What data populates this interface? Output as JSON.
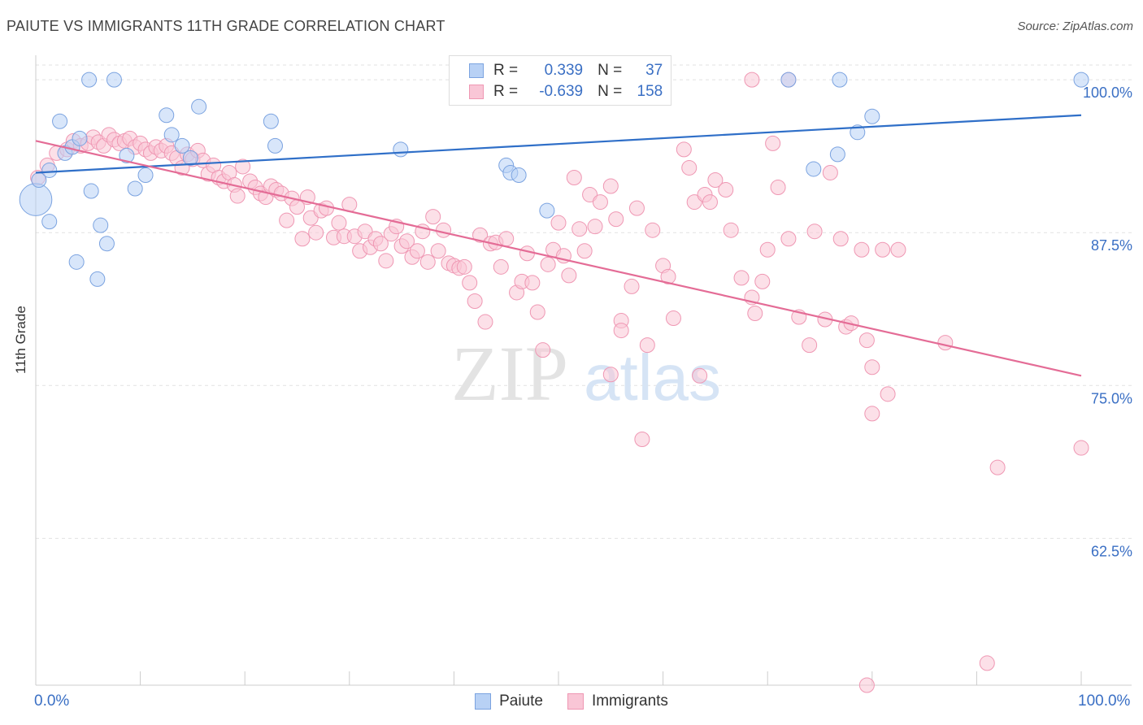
{
  "title": "PAIUTE VS IMMIGRANTS 11TH GRADE CORRELATION CHART",
  "source": "Source: ZipAtlas.com",
  "watermark": {
    "zip": "ZIP",
    "atlas": "atlas"
  },
  "colors": {
    "paiute_fill": "#b8d1f5",
    "paiute_stroke": "#7ba3e0",
    "paiute_line": "#2f6fc8",
    "immigrants_fill": "#f9c6d6",
    "immigrants_stroke": "#ef97b3",
    "immigrants_line": "#e46c96",
    "tick_label": "#3a6fc4",
    "grid": "#e2e2e2"
  },
  "legend": {
    "rows": [
      {
        "r_label": "R =",
        "r_value": "0.339",
        "n_label": "N =",
        "n_value": "37"
      },
      {
        "r_label": "R =",
        "r_value": "-0.639",
        "n_label": "N =",
        "n_value": "158"
      }
    ]
  },
  "chart_data": {
    "type": "scatter",
    "title": "PAIUTE VS IMMIGRANTS 11TH GRADE CORRELATION CHART",
    "xlabel": "",
    "ylabel": "11th Grade",
    "xlim": [
      0,
      100
    ],
    "ylim": [
      50.5,
      102
    ],
    "x_tick_labels": [
      "0.0%",
      "100.0%"
    ],
    "y_ticks": [
      62.5,
      75.0,
      87.5,
      100.0
    ],
    "y_tick_labels": [
      "62.5%",
      "75.0%",
      "87.5%",
      "100.0%"
    ],
    "grid": true,
    "legend_position": "top-center",
    "series": [
      {
        "name": "Paiute",
        "R": 0.339,
        "N": 37,
        "trend": {
          "x": [
            0,
            100
          ],
          "y": [
            92.4,
            97.1
          ]
        },
        "points": [
          [
            0,
            90.2,
            2.2
          ],
          [
            0.3,
            91.8,
            1
          ],
          [
            1.3,
            92.6,
            1
          ],
          [
            1.3,
            88.4,
            1
          ],
          [
            2.3,
            96.6,
            1
          ],
          [
            2.8,
            94.0,
            1
          ],
          [
            3.5,
            94.5,
            1
          ],
          [
            3.9,
            85.1,
            1
          ],
          [
            4.2,
            95.2,
            1
          ],
          [
            5.1,
            100,
            1
          ],
          [
            5.3,
            90.9,
            1
          ],
          [
            5.9,
            83.7,
            1
          ],
          [
            6.2,
            88.1,
            1
          ],
          [
            6.8,
            86.6,
            1
          ],
          [
            7.5,
            100,
            1
          ],
          [
            8.7,
            93.8,
            1
          ],
          [
            9.5,
            91.1,
            1
          ],
          [
            10.5,
            92.2,
            1
          ],
          [
            12.5,
            97.1,
            1
          ],
          [
            13.0,
            95.5,
            1
          ],
          [
            14.0,
            94.6,
            1
          ],
          [
            14.8,
            93.6,
            1
          ],
          [
            15.6,
            97.8,
            1
          ],
          [
            22.5,
            96.6,
            1
          ],
          [
            22.9,
            94.6,
            1
          ],
          [
            34.9,
            94.3,
            1
          ],
          [
            45.0,
            93.0,
            1
          ],
          [
            45.4,
            92.4,
            1
          ],
          [
            46.2,
            92.2,
            1
          ],
          [
            48.9,
            89.3,
            1
          ],
          [
            72.0,
            100,
            1
          ],
          [
            74.4,
            92.7,
            1
          ],
          [
            76.7,
            93.9,
            1
          ],
          [
            76.9,
            100,
            1
          ],
          [
            78.6,
            95.7,
            1
          ],
          [
            80.0,
            97.0,
            1
          ],
          [
            100,
            100,
            1
          ]
        ]
      },
      {
        "name": "Immigrants",
        "R": -0.639,
        "N": 158,
        "trend": {
          "x": [
            0,
            100
          ],
          "y": [
            95.0,
            75.8
          ]
        },
        "points": [
          [
            0.2,
            92.0,
            1
          ],
          [
            1.1,
            93.0,
            1
          ],
          [
            2.0,
            94.0,
            1
          ],
          [
            3.0,
            94.3,
            1
          ],
          [
            3.6,
            95.0,
            1
          ],
          [
            4.3,
            94.6,
            1
          ],
          [
            5.0,
            94.8,
            1
          ],
          [
            5.5,
            95.3,
            1
          ],
          [
            6.0,
            94.9,
            1
          ],
          [
            6.5,
            94.6,
            1
          ],
          [
            7.0,
            95.5,
            1
          ],
          [
            7.5,
            95.1,
            1
          ],
          [
            8.0,
            94.8,
            1
          ],
          [
            8.5,
            95.0,
            1
          ],
          [
            9.0,
            95.2,
            1
          ],
          [
            9.5,
            94.5,
            1
          ],
          [
            10.0,
            94.8,
            1
          ],
          [
            10.5,
            94.3,
            1
          ],
          [
            11.0,
            94.0,
            1
          ],
          [
            11.5,
            94.5,
            1
          ],
          [
            12.0,
            94.2,
            1
          ],
          [
            12.5,
            94.6,
            1
          ],
          [
            13.0,
            94.0,
            1
          ],
          [
            13.5,
            93.6,
            1
          ],
          [
            14.0,
            92.8,
            1
          ],
          [
            14.5,
            93.9,
            1
          ],
          [
            15.0,
            93.5,
            1
          ],
          [
            15.5,
            94.2,
            1
          ],
          [
            16.0,
            93.4,
            1
          ],
          [
            16.5,
            92.3,
            1
          ],
          [
            17.0,
            93.0,
            1
          ],
          [
            17.5,
            92.0,
            1
          ],
          [
            18.0,
            91.7,
            1
          ],
          [
            18.5,
            92.4,
            1
          ],
          [
            19.0,
            91.4,
            1
          ],
          [
            19.3,
            90.5,
            1
          ],
          [
            19.8,
            92.9,
            1
          ],
          [
            20.5,
            91.7,
            1
          ],
          [
            21.0,
            91.2,
            1
          ],
          [
            21.5,
            90.7,
            1
          ],
          [
            22.0,
            90.4,
            1
          ],
          [
            22.5,
            91.3,
            1
          ],
          [
            23.0,
            91.0,
            1
          ],
          [
            23.5,
            90.7,
            1
          ],
          [
            24.0,
            88.5,
            1
          ],
          [
            24.5,
            90.3,
            1
          ],
          [
            25.0,
            89.6,
            1
          ],
          [
            25.5,
            87.0,
            1
          ],
          [
            26.0,
            90.4,
            1
          ],
          [
            26.3,
            88.7,
            1
          ],
          [
            26.8,
            87.5,
            1
          ],
          [
            27.3,
            89.3,
            1
          ],
          [
            27.8,
            89.5,
            1
          ],
          [
            28.5,
            87.1,
            1
          ],
          [
            29.0,
            88.3,
            1
          ],
          [
            29.5,
            87.2,
            1
          ],
          [
            30.0,
            89.8,
            1
          ],
          [
            30.5,
            87.2,
            1
          ],
          [
            31.0,
            86.0,
            1
          ],
          [
            31.5,
            87.6,
            1
          ],
          [
            32.0,
            86.3,
            1
          ],
          [
            32.5,
            87.0,
            1
          ],
          [
            33.0,
            86.6,
            1
          ],
          [
            33.5,
            85.2,
            1
          ],
          [
            34.0,
            87.4,
            1
          ],
          [
            34.5,
            88.0,
            1
          ],
          [
            35.0,
            86.4,
            1
          ],
          [
            35.5,
            86.8,
            1
          ],
          [
            36.0,
            85.5,
            1
          ],
          [
            36.5,
            86.0,
            1
          ],
          [
            37.0,
            87.6,
            1
          ],
          [
            37.5,
            85.1,
            1
          ],
          [
            38.0,
            88.8,
            1
          ],
          [
            38.5,
            86.0,
            1
          ],
          [
            39.0,
            87.7,
            1
          ],
          [
            39.5,
            85.0,
            1
          ],
          [
            40.0,
            84.8,
            1
          ],
          [
            40.5,
            84.6,
            1
          ],
          [
            41.0,
            84.7,
            1
          ],
          [
            41.5,
            83.4,
            1
          ],
          [
            42.0,
            81.9,
            1
          ],
          [
            42.5,
            87.3,
            1
          ],
          [
            43.0,
            80.2,
            1
          ],
          [
            43.5,
            86.6,
            1
          ],
          [
            44.0,
            86.7,
            1
          ],
          [
            44.5,
            84.7,
            1
          ],
          [
            45.0,
            87.0,
            1
          ],
          [
            46.0,
            82.6,
            1
          ],
          [
            46.5,
            83.5,
            1
          ],
          [
            47.0,
            85.8,
            1
          ],
          [
            47.5,
            83.4,
            1
          ],
          [
            48.0,
            81.0,
            1
          ],
          [
            48.5,
            77.9,
            1
          ],
          [
            49.0,
            84.9,
            1
          ],
          [
            49.5,
            86.1,
            1
          ],
          [
            50.0,
            88.3,
            1
          ],
          [
            50.5,
            85.6,
            1
          ],
          [
            51.0,
            84.0,
            1
          ],
          [
            51.5,
            92.0,
            1
          ],
          [
            52.0,
            87.8,
            1
          ],
          [
            52.5,
            86.0,
            1
          ],
          [
            53.0,
            90.6,
            1
          ],
          [
            53.5,
            88.0,
            1
          ],
          [
            54.0,
            90.0,
            1
          ],
          [
            55.0,
            91.3,
            1
          ],
          [
            55.5,
            88.6,
            1
          ],
          [
            56.0,
            80.3,
            1
          ],
          [
            57.0,
            83.1,
            1
          ],
          [
            57.5,
            89.5,
            1
          ],
          [
            58.5,
            78.3,
            1
          ],
          [
            59.0,
            87.7,
            1
          ],
          [
            60.0,
            84.8,
            1
          ],
          [
            60.5,
            83.9,
            1
          ],
          [
            61.0,
            80.5,
            1
          ],
          [
            62.0,
            94.3,
            1
          ],
          [
            62.5,
            92.8,
            1
          ],
          [
            63.0,
            90.0,
            1
          ],
          [
            64.0,
            90.6,
            1
          ],
          [
            64.5,
            90.0,
            1
          ],
          [
            65.0,
            91.8,
            1
          ],
          [
            66.0,
            91.0,
            1
          ],
          [
            66.5,
            87.7,
            1
          ],
          [
            67.5,
            83.8,
            1
          ],
          [
            68.5,
            82.2,
            1
          ],
          [
            68.8,
            80.9,
            1
          ],
          [
            69.5,
            83.5,
            1
          ],
          [
            70.0,
            86.1,
            1
          ],
          [
            70.5,
            94.8,
            1
          ],
          [
            71.0,
            91.2,
            1
          ],
          [
            72.0,
            87.0,
            1
          ],
          [
            73.0,
            80.6,
            1
          ],
          [
            74.0,
            78.3,
            1
          ],
          [
            74.5,
            87.6,
            1
          ],
          [
            75.5,
            80.4,
            1
          ],
          [
            76.0,
            92.4,
            1
          ],
          [
            77.0,
            87.0,
            1
          ],
          [
            77.5,
            79.8,
            1
          ],
          [
            78.0,
            80.1,
            1
          ],
          [
            79.0,
            86.1,
            1
          ],
          [
            79.5,
            78.7,
            1
          ],
          [
            80.0,
            72.7,
            1
          ],
          [
            81.0,
            86.1,
            1
          ],
          [
            81.5,
            74.3,
            1
          ],
          [
            82.5,
            86.1,
            1
          ],
          [
            87.0,
            78.5,
            1
          ],
          [
            91.0,
            52.3,
            1
          ],
          [
            92.0,
            68.3,
            1
          ],
          [
            100,
            69.9,
            1
          ],
          [
            63.5,
            75.8,
            1
          ],
          [
            55.0,
            75.9,
            1
          ],
          [
            58.0,
            70.6,
            1
          ],
          [
            68.5,
            100,
            1
          ],
          [
            72.0,
            100,
            1
          ],
          [
            80.0,
            76.5,
            1
          ],
          [
            79.5,
            50.5,
            1
          ],
          [
            56.0,
            79.5,
            1
          ]
        ]
      }
    ]
  },
  "bottom_legend": [
    "Paiute",
    "Immigrants"
  ]
}
